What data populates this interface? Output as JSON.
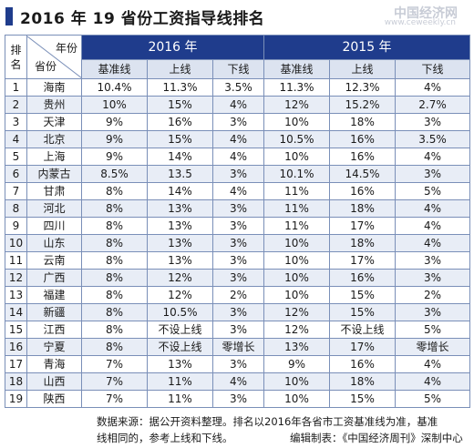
{
  "title": "2016 年 19 省份工资指导线排名",
  "watermark": "中国经济网",
  "watermark_sub": "www.ceweekly.cn",
  "header": {
    "rank_label": "排名",
    "corner_top": "年份",
    "corner_bottom": "省份",
    "year_2016": "2016 年",
    "year_2015": "2015 年",
    "sub_cols": [
      "基准线",
      "上线",
      "下线",
      "基准线",
      "上线",
      "下线"
    ]
  },
  "rows": [
    {
      "rank": "1",
      "province": "海南",
      "v": [
        "10.4%",
        "11.3%",
        "3.5%",
        "11.3%",
        "12.3%",
        "4%"
      ]
    },
    {
      "rank": "2",
      "province": "贵州",
      "v": [
        "10%",
        "15%",
        "4%",
        "12%",
        "15.2%",
        "2.7%"
      ]
    },
    {
      "rank": "3",
      "province": "天津",
      "v": [
        "9%",
        "16%",
        "3%",
        "10%",
        "18%",
        "3%"
      ]
    },
    {
      "rank": "4",
      "province": "北京",
      "v": [
        "9%",
        "15%",
        "4%",
        "10.5%",
        "16%",
        "3.5%"
      ]
    },
    {
      "rank": "5",
      "province": "上海",
      "v": [
        "9%",
        "14%",
        "4%",
        "10%",
        "16%",
        "4%"
      ]
    },
    {
      "rank": "6",
      "province": "内蒙古",
      "v": [
        "8.5%",
        "13.5",
        "3%",
        "10.1%",
        "14.5%",
        "3%"
      ]
    },
    {
      "rank": "7",
      "province": "甘肃",
      "v": [
        "8%",
        "14%",
        "4%",
        "11%",
        "16%",
        "5%"
      ]
    },
    {
      "rank": "8",
      "province": "河北",
      "v": [
        "8%",
        "13%",
        "3%",
        "11%",
        "18%",
        "4%"
      ]
    },
    {
      "rank": "9",
      "province": "四川",
      "v": [
        "8%",
        "13%",
        "3%",
        "11%",
        "17%",
        "4%"
      ]
    },
    {
      "rank": "10",
      "province": "山东",
      "v": [
        "8%",
        "13%",
        "3%",
        "10%",
        "18%",
        "4%"
      ]
    },
    {
      "rank": "11",
      "province": "云南",
      "v": [
        "8%",
        "13%",
        "3%",
        "10%",
        "17%",
        "3%"
      ]
    },
    {
      "rank": "12",
      "province": "广西",
      "v": [
        "8%",
        "12%",
        "3%",
        "10%",
        "16%",
        "3%"
      ]
    },
    {
      "rank": "13",
      "province": "福建",
      "v": [
        "8%",
        "12%",
        "2%",
        "10%",
        "15%",
        "2%"
      ]
    },
    {
      "rank": "14",
      "province": "新疆",
      "v": [
        "8%",
        "10.5%",
        "3%",
        "12%",
        "15%",
        "3%"
      ]
    },
    {
      "rank": "15",
      "province": "江西",
      "v": [
        "8%",
        "不设上线",
        "3%",
        "12%",
        "不设上线",
        "5%"
      ]
    },
    {
      "rank": "16",
      "province": "宁夏",
      "v": [
        "8%",
        "不设上线",
        "零增长",
        "13%",
        "17%",
        "零增长"
      ]
    },
    {
      "rank": "17",
      "province": "青海",
      "v": [
        "7%",
        "13%",
        "3%",
        "9%",
        "16%",
        "4%"
      ]
    },
    {
      "rank": "18",
      "province": "山西",
      "v": [
        "7%",
        "11%",
        "4%",
        "10%",
        "18%",
        "4%"
      ]
    },
    {
      "rank": "19",
      "province": "陕西",
      "v": [
        "7%",
        "11%",
        "3%",
        "10%",
        "15%",
        "5%"
      ]
    }
  ],
  "footer": {
    "line1": "数据来源：据公开资料整理。排名以2016年各省市工资基准线为准，基准",
    "line2": "线相同的，参考上线和下线。",
    "credit": "编辑制表：《中国经济周刊》深制中心"
  },
  "colors": {
    "accent": "#1f3c8c",
    "row_alt": "#e8edf6",
    "sub_header": "#dce3f0"
  }
}
